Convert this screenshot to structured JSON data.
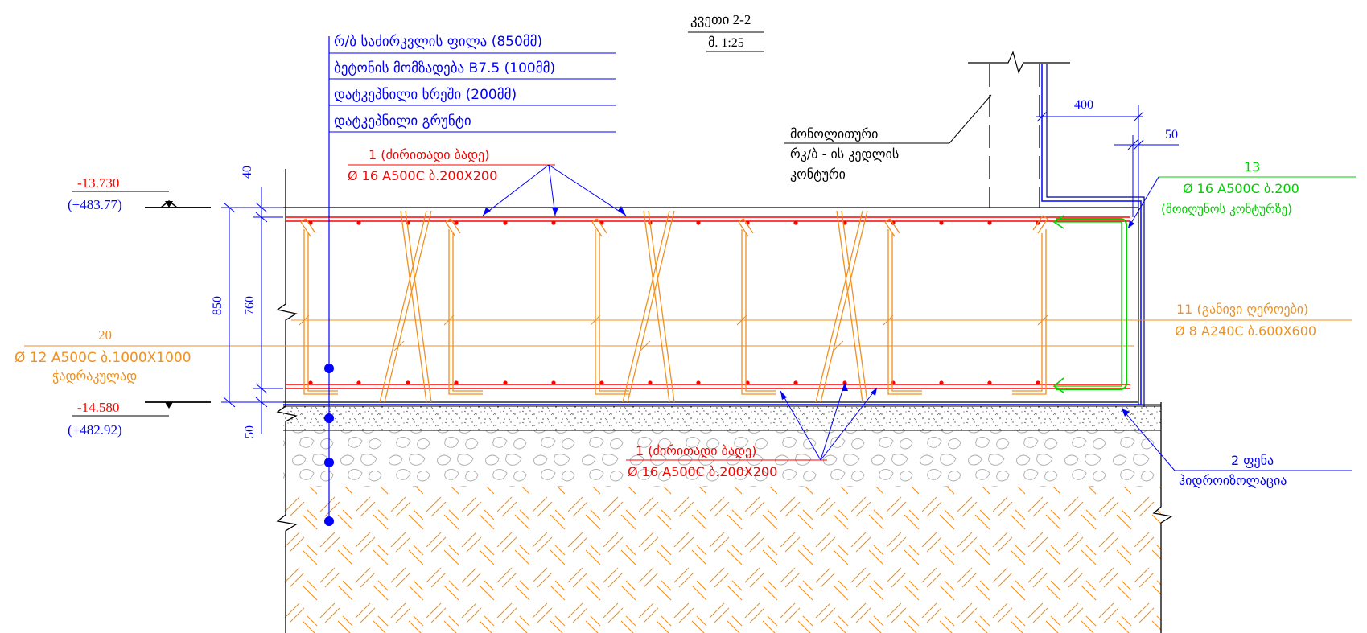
{
  "section": {
    "title": "კვეთი 2-2",
    "scale": "მ. 1:25"
  },
  "layers": [
    "რ/ბ საძირკვლის ფილა (850მმ)",
    "ბეტონის მომზადება B7.5 (100მმ)",
    "დატკეპნილი ხრეში (200მმ)",
    "დატკეპნილი გრუნტი"
  ],
  "monolith_note": [
    "მონოლითური",
    "რკ/ბ - ის კედლის",
    "კონტური"
  ],
  "levels": {
    "top": {
      "mark": "-13.730",
      "abs": "(+483.77)"
    },
    "bottom": {
      "mark": "-14.580",
      "abs": "(+482.92)"
    }
  },
  "dimensions": {
    "d40": "40",
    "d850": "850",
    "d760": "760",
    "d50": "50",
    "d400": "400",
    "d50r": "50"
  },
  "rebar_top": {
    "label": "1 (ძირითადი ბადე)",
    "spec": "Ø 16 A500C ბ.200X200"
  },
  "rebar_bottom": {
    "label": "1 (ძირითადი ბადე)",
    "spec": "Ø 16 A500C ბ.200X200"
  },
  "rebar_13": {
    "num": "13",
    "spec": "Ø 16 A500C ბ.200",
    "note": "(მოიღუნოს კონტურზე)"
  },
  "rebar_11": {
    "label": "11 (განივი ღეროები)",
    "spec": "Ø 8 A240C ბ.600X600"
  },
  "rebar_20": {
    "num": "20",
    "spec": "Ø 12 A500C ბ.1000X1000",
    "note": "ჭადრაკულად"
  },
  "hydro": {
    "label": "2 ფენა",
    "text": "ჰიდროიზოლაცია"
  },
  "colors": {
    "blue": "#0000ff",
    "red": "#ff0000",
    "orange": "#f0901e",
    "green": "#00d000",
    "black": "#000000",
    "navy": "#000080"
  }
}
